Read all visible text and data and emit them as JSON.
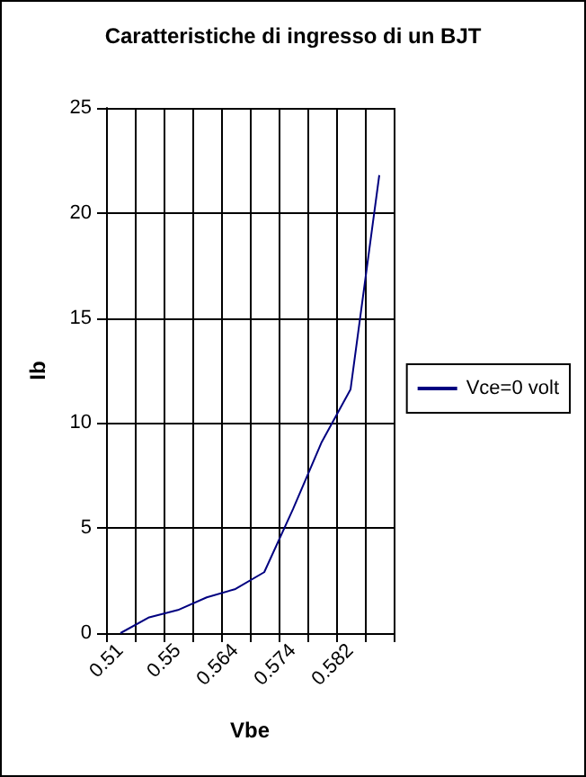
{
  "chart_data": {
    "type": "line",
    "title": "Caratteristiche di ingresso di un BJT",
    "xlabel": "Vbe",
    "ylabel": "Ib",
    "categories": [
      "0.51",
      null,
      "0.55",
      null,
      "0.564",
      null,
      "0.574",
      null,
      "0.582",
      null
    ],
    "series": [
      {
        "name": "Vce=0 volt",
        "color": "#000080",
        "values": [
          0,
          0.75,
          1.1,
          1.7,
          2.1,
          2.9,
          5.9,
          9.1,
          11.6,
          21.8
        ]
      }
    ],
    "ylim": [
      0,
      25
    ],
    "yticks": [
      0,
      5,
      10,
      15,
      20,
      25
    ],
    "grid": true,
    "legend": "right",
    "marker": "none",
    "line_style": "solid"
  }
}
